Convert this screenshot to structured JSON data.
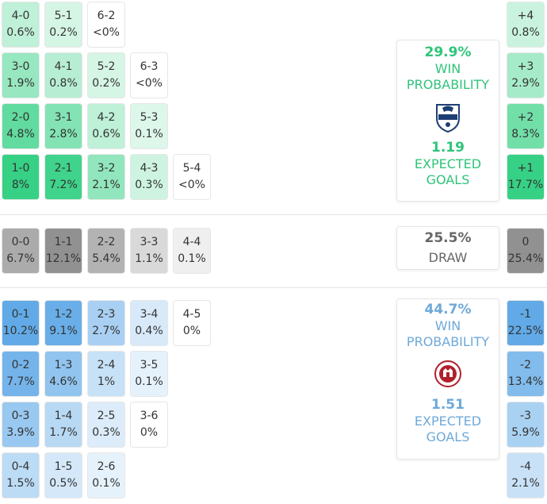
{
  "chart_data": {
    "type": "heatmap",
    "home_cells": [
      {
        "score": "4-0",
        "prob": "0.6%",
        "value": 0.6
      },
      {
        "score": "5-1",
        "prob": "0.2%",
        "value": 0.2
      },
      {
        "score": "6-2",
        "prob": "<0%",
        "value": 0
      },
      {
        "score": "3-0",
        "prob": "1.9%",
        "value": 1.9
      },
      {
        "score": "4-1",
        "prob": "0.8%",
        "value": 0.8
      },
      {
        "score": "5-2",
        "prob": "0.2%",
        "value": 0.2
      },
      {
        "score": "6-3",
        "prob": "<0%",
        "value": 0
      },
      {
        "score": "2-0",
        "prob": "4.8%",
        "value": 4.8
      },
      {
        "score": "3-1",
        "prob": "2.8%",
        "value": 2.8
      },
      {
        "score": "4-2",
        "prob": "0.6%",
        "value": 0.6
      },
      {
        "score": "5-3",
        "prob": "0.1%",
        "value": 0.1
      },
      {
        "score": "1-0",
        "prob": "8%",
        "value": 8
      },
      {
        "score": "2-1",
        "prob": "7.2%",
        "value": 7.2
      },
      {
        "score": "3-2",
        "prob": "2.1%",
        "value": 2.1
      },
      {
        "score": "4-3",
        "prob": "0.3%",
        "value": 0.3
      },
      {
        "score": "5-4",
        "prob": "<0%",
        "value": 0
      }
    ],
    "draw_cells": [
      {
        "score": "0-0",
        "prob": "6.7%",
        "value": 6.7
      },
      {
        "score": "1-1",
        "prob": "12.1%",
        "value": 12.1
      },
      {
        "score": "2-2",
        "prob": "5.4%",
        "value": 5.4
      },
      {
        "score": "3-3",
        "prob": "1.1%",
        "value": 1.1
      },
      {
        "score": "4-4",
        "prob": "0.1%",
        "value": 0.1
      }
    ],
    "away_cells": [
      {
        "score": "0-1",
        "prob": "10.2%",
        "value": 10.2
      },
      {
        "score": "1-2",
        "prob": "9.1%",
        "value": 9.1
      },
      {
        "score": "2-3",
        "prob": "2.7%",
        "value": 2.7
      },
      {
        "score": "3-4",
        "prob": "0.4%",
        "value": 0.4
      },
      {
        "score": "4-5",
        "prob": "0%",
        "value": 0
      },
      {
        "score": "0-2",
        "prob": "7.7%",
        "value": 7.7
      },
      {
        "score": "1-3",
        "prob": "4.6%",
        "value": 4.6
      },
      {
        "score": "2-4",
        "prob": "1%",
        "value": 1
      },
      {
        "score": "3-5",
        "prob": "0.1%",
        "value": 0.1
      },
      {
        "score": "0-3",
        "prob": "3.9%",
        "value": 3.9
      },
      {
        "score": "1-4",
        "prob": "1.7%",
        "value": 1.7
      },
      {
        "score": "2-5",
        "prob": "0.3%",
        "value": 0.3
      },
      {
        "score": "3-6",
        "prob": "0%",
        "value": 0
      },
      {
        "score": "0-4",
        "prob": "1.5%",
        "value": 1.5
      },
      {
        "score": "1-5",
        "prob": "0.5%",
        "value": 0.5
      },
      {
        "score": "2-6",
        "prob": "0.1%",
        "value": 0.1
      }
    ],
    "margin_cells": [
      {
        "score": "+4",
        "prob": "0.8%",
        "value": 0.8,
        "group": "home"
      },
      {
        "score": "+3",
        "prob": "2.9%",
        "value": 2.9,
        "group": "home"
      },
      {
        "score": "+2",
        "prob": "8.3%",
        "value": 8.3,
        "group": "home"
      },
      {
        "score": "+1",
        "prob": "17.7%",
        "value": 17.7,
        "group": "home"
      },
      {
        "score": "0",
        "prob": "25.4%",
        "value": 25.4,
        "group": "draw"
      },
      {
        "score": "-1",
        "prob": "22.5%",
        "value": 22.5,
        "group": "away"
      },
      {
        "score": "-2",
        "prob": "13.4%",
        "value": 13.4,
        "group": "away"
      },
      {
        "score": "-3",
        "prob": "5.9%",
        "value": 5.9,
        "group": "away"
      },
      {
        "score": "-4",
        "prob": "2.1%",
        "value": 2.1,
        "group": "away"
      }
    ]
  },
  "home_summary": {
    "win_pct": "29.9%",
    "win_label": "WIN PROBABILITY",
    "expected_goals": "1.19",
    "xg_label": "EXPECTED GOALS",
    "icon": "puebla-crest-icon"
  },
  "draw_summary": {
    "pct": "25.5%",
    "label": "DRAW"
  },
  "away_summary": {
    "win_pct": "44.7%",
    "win_label": "WIN PROBABILITY",
    "expected_goals": "1.51",
    "xg_label": "EXPECTED GOALS",
    "icon": "atletico-san-luis-crest-icon"
  },
  "colors": {
    "home_accent": "#2fc47a",
    "away_accent": "#6ea9d9",
    "draw_text": "#666666",
    "home_base": "#2ecf80",
    "away_base": "#5aa6e6",
    "draw_base": "#8c8c8c"
  }
}
